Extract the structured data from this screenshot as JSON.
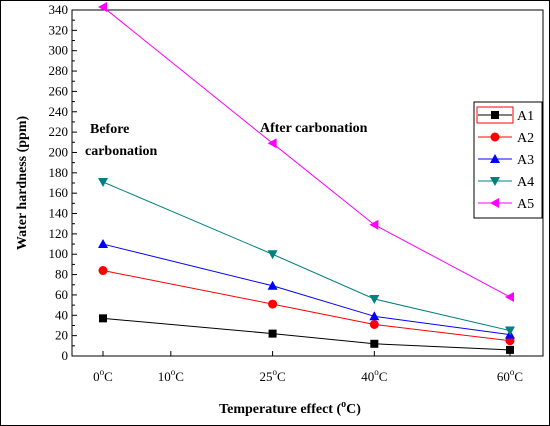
{
  "chart_data": {
    "type": "line",
    "xlabel": "Temperature effect (",
    "xlabel_sup": "o",
    "xlabel_tail": "C)",
    "ylabel": "Water hardness (ppm)",
    "ylim": [
      0,
      340
    ],
    "ytick_step": 20,
    "x_ticks": [
      {
        "x": 0,
        "num": "0",
        "unit": "C"
      },
      {
        "x": 10,
        "num": "10",
        "unit": "C"
      },
      {
        "x": 25,
        "num": "25",
        "unit": "C"
      },
      {
        "x": 40,
        "num": "40",
        "unit": "C"
      },
      {
        "x": 60,
        "num": "60",
        "unit": "C"
      }
    ],
    "x": [
      0,
      25,
      40,
      60
    ],
    "annotations": {
      "before_line1": "Before",
      "before_line2": "carbonation",
      "after": "After carbonation"
    },
    "legend_position": "right",
    "series": [
      {
        "name": "A1",
        "color": "#000000",
        "marker": "square",
        "values": [
          37,
          22,
          12,
          6
        ]
      },
      {
        "name": "A2",
        "color": "#ff0000",
        "marker": "circle",
        "values": [
          84,
          51,
          31,
          15
        ]
      },
      {
        "name": "A3",
        "color": "#0000ff",
        "marker": "triangle-up",
        "values": [
          110,
          69,
          39,
          21
        ]
      },
      {
        "name": "A4",
        "color": "#008080",
        "marker": "triangle-down",
        "values": [
          171,
          100,
          56,
          25
        ]
      },
      {
        "name": "A5",
        "color": "#ff00ff",
        "marker": "triangle-left",
        "values": [
          343,
          209,
          129,
          58
        ]
      }
    ]
  }
}
